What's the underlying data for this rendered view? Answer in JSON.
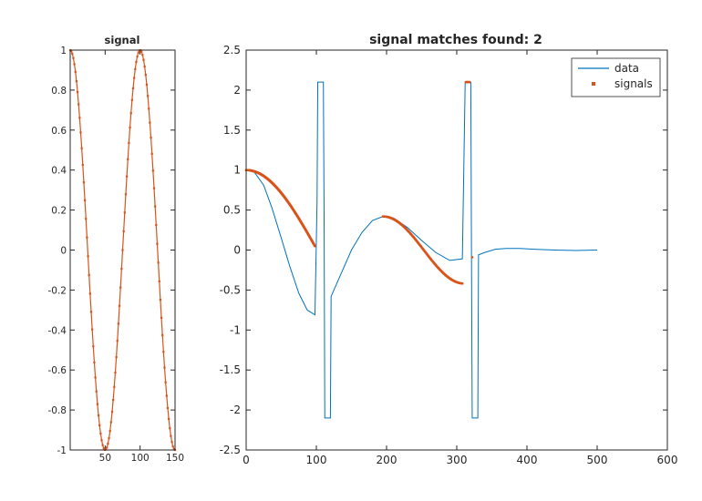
{
  "chart_data": [
    {
      "type": "scatter",
      "title": "signal",
      "xlabel": "",
      "ylabel": "",
      "xlim": [
        0,
        150
      ],
      "ylim": [
        -1,
        1
      ],
      "xticks": [
        50,
        100,
        150
      ],
      "yticks": [
        -1,
        -0.8,
        -0.6,
        -0.4,
        -0.2,
        0,
        0.2,
        0.4,
        0.6,
        0.8,
        1
      ],
      "grid": false,
      "series": [
        {
          "type": "line+markers",
          "color": "#D95319",
          "formula": "cos(2*pi*x/100)",
          "x_range": [
            0,
            150
          ],
          "samples": 101
        }
      ]
    },
    {
      "type": "line",
      "title": "signal matches found: 2",
      "xlabel": "",
      "ylabel": "",
      "xlim": [
        0,
        600
      ],
      "ylim": [
        -2.5,
        2.5
      ],
      "xticks": [
        0,
        100,
        200,
        300,
        400,
        500,
        600
      ],
      "yticks": [
        -2.5,
        -2,
        -1.5,
        -1,
        -0.5,
        0,
        0.5,
        1,
        1.5,
        2,
        2.5
      ],
      "grid": false,
      "legend": {
        "position": "top-right",
        "entries": [
          "data",
          "signals"
        ]
      },
      "series": [
        {
          "name": "data",
          "color": "#0072BD",
          "points": [
            [
              0,
              1
            ],
            [
              12,
              0.97
            ],
            [
              25,
              0.81
            ],
            [
              37,
              0.52
            ],
            [
              50,
              0.15
            ],
            [
              62,
              -0.2
            ],
            [
              75,
              -0.54
            ],
            [
              87,
              -0.75
            ],
            [
              98,
              -0.81
            ],
            [
              101,
              0.6
            ],
            [
              102,
              2.1
            ],
            [
              110,
              2.1
            ],
            [
              111,
              0.5
            ],
            [
              112,
              -2.1
            ],
            [
              120,
              -2.1
            ],
            [
              121,
              -0.58
            ],
            [
              135,
              -0.3
            ],
            [
              150,
              0
            ],
            [
              165,
              0.22
            ],
            [
              180,
              0.37
            ],
            [
              195,
              0.42
            ],
            [
              210,
              0.4
            ],
            [
              230,
              0.28
            ],
            [
              250,
              0.12
            ],
            [
              270,
              -0.03
            ],
            [
              290,
              -0.13
            ],
            [
              308,
              -0.11
            ],
            [
              312,
              2.1
            ],
            [
              320,
              2.1
            ],
            [
              321,
              -0.1
            ],
            [
              322,
              -2.1
            ],
            [
              330,
              -2.1
            ],
            [
              331,
              -0.06
            ],
            [
              340,
              -0.03
            ],
            [
              355,
              0.01
            ],
            [
              370,
              0.02
            ],
            [
              390,
              0.02
            ],
            [
              410,
              0.01
            ],
            [
              440,
              0.0
            ],
            [
              470,
              -0.005
            ],
            [
              500,
              0
            ]
          ]
        },
        {
          "name": "signals",
          "color": "#D95319",
          "segments": [
            {
              "formula": "cos(0.01553*x)",
              "x_range": [
                0,
                98
              ],
              "samples": 200
            },
            {
              "formula": "0.42*cos(0.0271*(x-195))",
              "x_range": [
                195,
                308
              ],
              "samples": 120
            },
            {
              "formula": "2.1",
              "x_range": [
                313,
                318
              ],
              "samples": 8
            }
          ],
          "extra_points": [
            [
              322,
              -0.09
            ]
          ]
        }
      ]
    }
  ]
}
